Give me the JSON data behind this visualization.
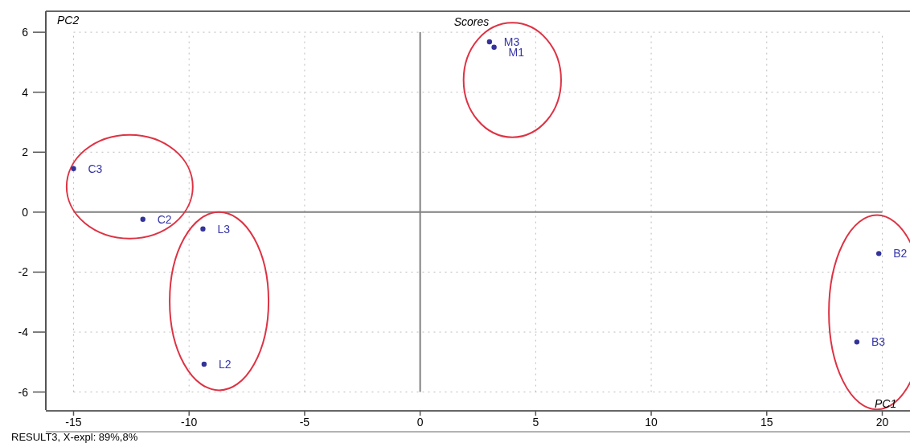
{
  "chart_data": {
    "type": "scatter",
    "title": "Scores",
    "xlabel": "PC1",
    "ylabel": "PC2",
    "annotations": [
      "RESULT3, X-expl: 89%,8%"
    ],
    "xlim": [
      -16.2,
      21.2
    ],
    "ylim": [
      -6.6,
      6.7
    ],
    "xticks": [
      -15,
      -10,
      -5,
      0,
      5,
      10,
      15,
      20
    ],
    "yticks": [
      -6,
      -4,
      -2,
      0,
      2,
      4,
      6
    ],
    "grid": true,
    "marker": "circle",
    "series": [
      {
        "name": "C3",
        "color": "#333399",
        "x": [
          -15.0
        ],
        "values": [
          1.45
        ]
      },
      {
        "name": "C2",
        "color": "#333399",
        "x": [
          -12.0
        ],
        "values": [
          -0.24
        ]
      },
      {
        "name": "L3",
        "color": "#333399",
        "x": [
          -9.4
        ],
        "values": [
          -0.56
        ]
      },
      {
        "name": "L2",
        "color": "#333399",
        "x": [
          -9.35
        ],
        "values": [
          -5.07
        ]
      },
      {
        "name": "M3",
        "color": "#333399",
        "x": [
          3.0
        ],
        "values": [
          5.68
        ]
      },
      {
        "name": "M1",
        "color": "#333399",
        "x": [
          3.2
        ],
        "values": [
          5.5
        ]
      },
      {
        "name": "B2",
        "color": "#333399",
        "x": [
          19.85
        ],
        "values": [
          -1.38
        ]
      },
      {
        "name": "B3",
        "color": "#333399",
        "x": [
          18.9
        ],
        "values": [
          -4.33
        ]
      }
    ]
  }
}
